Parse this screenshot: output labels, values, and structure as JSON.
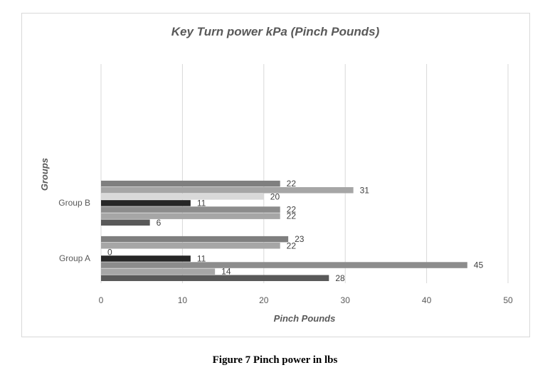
{
  "chart_data": {
    "type": "bar",
    "orientation": "horizontal",
    "title": "Key Turn power kPa (Pinch Pounds)",
    "xlabel": "Pinch Pounds",
    "ylabel": "Groups",
    "xlim": [
      0,
      50
    ],
    "x_ticks": [
      "0",
      "10",
      "20",
      "30",
      "40",
      "50"
    ],
    "grid": "vertical",
    "categories": [
      "Group A",
      "Group B"
    ],
    "bar_colors": [
      "#595959",
      "#a6a6a6",
      "#8c8c8c",
      "#262626",
      "#d9d9d9",
      "#a6a6a6",
      "#7f7f7f"
    ],
    "series": [
      {
        "values": [
          28,
          6
        ]
      },
      {
        "values": [
          14,
          22
        ]
      },
      {
        "values": [
          45,
          22
        ]
      },
      {
        "values": [
          11,
          11
        ]
      },
      {
        "values": [
          0,
          20
        ]
      },
      {
        "values": [
          22,
          31
        ]
      },
      {
        "values": [
          23,
          22
        ]
      }
    ]
  },
  "caption": "Figure 7 Pinch power in lbs"
}
